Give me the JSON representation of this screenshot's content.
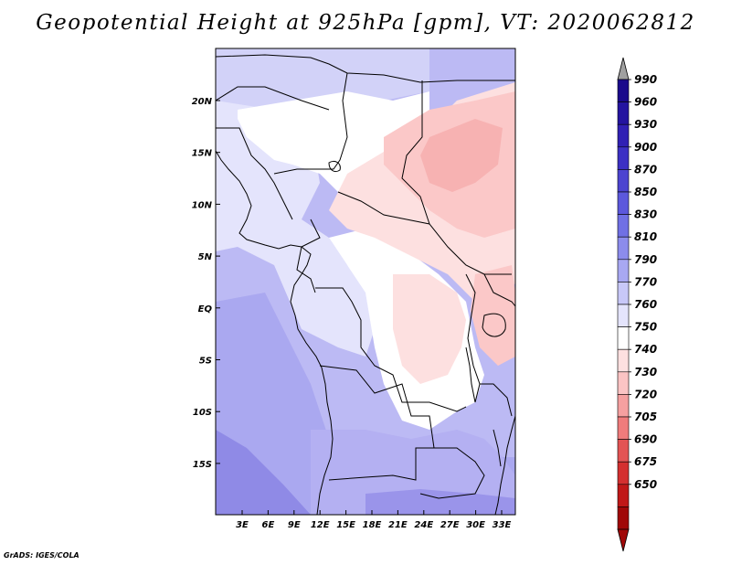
{
  "title": "Geopotential Height at 925hPa [gpm], VT: 2020062812",
  "credit": "GrADS: IGES/COLA",
  "lat_ticks": [
    "20N",
    "15N",
    "10N",
    "5N",
    "EQ",
    "5S",
    "10S",
    "15S"
  ],
  "lon_ticks": [
    "3E",
    "6E",
    "9E",
    "12E",
    "15E",
    "18E",
    "21E",
    "24E",
    "27E",
    "30E",
    "33E"
  ],
  "colorbar": {
    "levels": [
      "990",
      "960",
      "930",
      "900",
      "870",
      "850",
      "830",
      "810",
      "790",
      "770",
      "760",
      "750",
      "740",
      "730",
      "720",
      "705",
      "690",
      "675",
      "650"
    ],
    "colors": [
      "#1a0a8c",
      "#2414a0",
      "#3020b4",
      "#3c30c4",
      "#4c44d0",
      "#5c58dc",
      "#7070e4",
      "#8c8cec",
      "#a8a8f2",
      "#c8c8f8",
      "#e4e4fc",
      "#ffffff",
      "#fde0e0",
      "#fbc4c4",
      "#f5a0a0",
      "#ef7c7c",
      "#e35454",
      "#d43030",
      "#c01818",
      "#a00808"
    ],
    "top_arrow_color": "#a0a0a0",
    "bottom_arrow_color": "#a00808"
  },
  "field_colors": {
    "ocean_south": "#8f8ae6",
    "ocean_mid": "#aaa8f0",
    "ocean_north": "#bcbaf4",
    "sahara": "#d2d2f8",
    "light_blue": "#e4e4fc",
    "white": "#ffffff",
    "pink_light": "#fde0e0",
    "pink": "#fbc8c8",
    "pink_dark": "#f7b2b2",
    "south_africa": "#b4b0f2",
    "south_deep": "#9a94ea"
  }
}
